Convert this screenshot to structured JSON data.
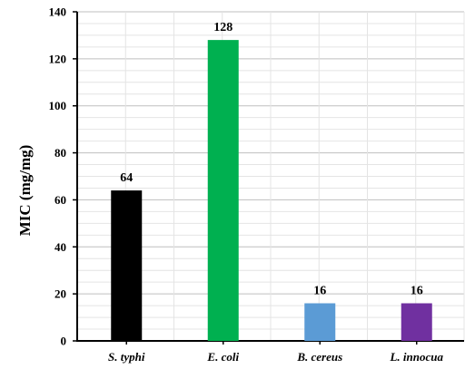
{
  "chart_data": {
    "type": "bar",
    "categories": [
      "S. typhi",
      "E. coli",
      "B. cereus",
      "L. innocua"
    ],
    "values": [
      64,
      128,
      16,
      16
    ],
    "data_labels": [
      "64",
      "128",
      "16",
      "16"
    ],
    "colors": [
      "#000000",
      "#00b050",
      "#5b9bd5",
      "#7030a0"
    ],
    "ylabel": "MIC (mg/mg)",
    "ylim": [
      0,
      140
    ],
    "yticks": [
      0,
      20,
      40,
      60,
      80,
      100,
      120,
      140
    ],
    "grid": true
  }
}
